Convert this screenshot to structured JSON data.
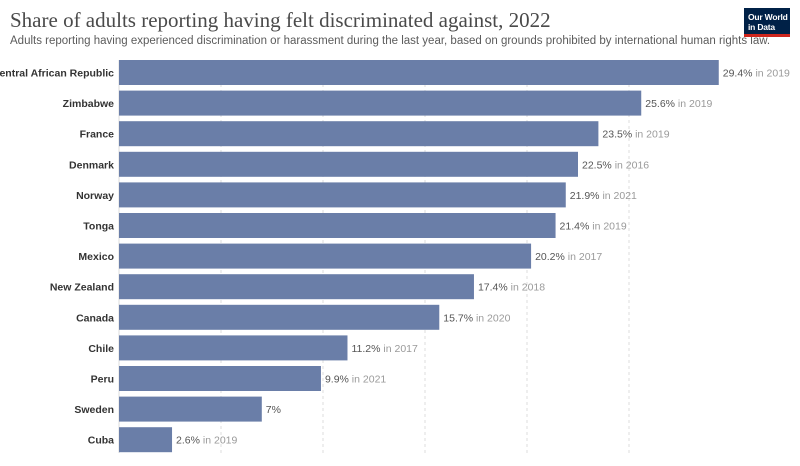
{
  "header": {
    "title": "Share of adults reporting having felt discriminated against, 2022",
    "subtitle": "Adults reporting having experienced discrimination or harassment during the last year, based on grounds prohibited by international human rights law.",
    "logo_line1": "Our World",
    "logo_line2": "in Data"
  },
  "colors": {
    "bar": "#6a7ea8",
    "grid": "#dddddd",
    "logo_bg": "#002147",
    "logo_accent": "#ce261e"
  },
  "chart_data": {
    "type": "bar",
    "orientation": "horizontal",
    "unit": "%",
    "xlim": [
      0,
      29.4
    ],
    "grid": true,
    "categories": [
      "Central African Republic",
      "Zimbabwe",
      "France",
      "Denmark",
      "Norway",
      "Tonga",
      "Mexico",
      "New Zealand",
      "Canada",
      "Chile",
      "Peru",
      "Sweden",
      "Cuba"
    ],
    "values": [
      29.4,
      25.6,
      23.5,
      22.5,
      21.9,
      21.4,
      20.2,
      17.4,
      15.7,
      11.2,
      9.9,
      7,
      2.6
    ],
    "value_labels": [
      "29.4%",
      "25.6%",
      "23.5%",
      "22.5%",
      "21.9%",
      "21.4%",
      "20.2%",
      "17.4%",
      "15.7%",
      "11.2%",
      "9.9%",
      "7%",
      "2.6%"
    ],
    "year_notes": [
      "in 2019",
      "in 2019",
      "in 2019",
      "in 2016",
      "in 2021",
      "in 2019",
      "in 2017",
      "in 2018",
      "in 2020",
      "in 2017",
      "in 2021",
      "",
      "in 2019"
    ]
  }
}
